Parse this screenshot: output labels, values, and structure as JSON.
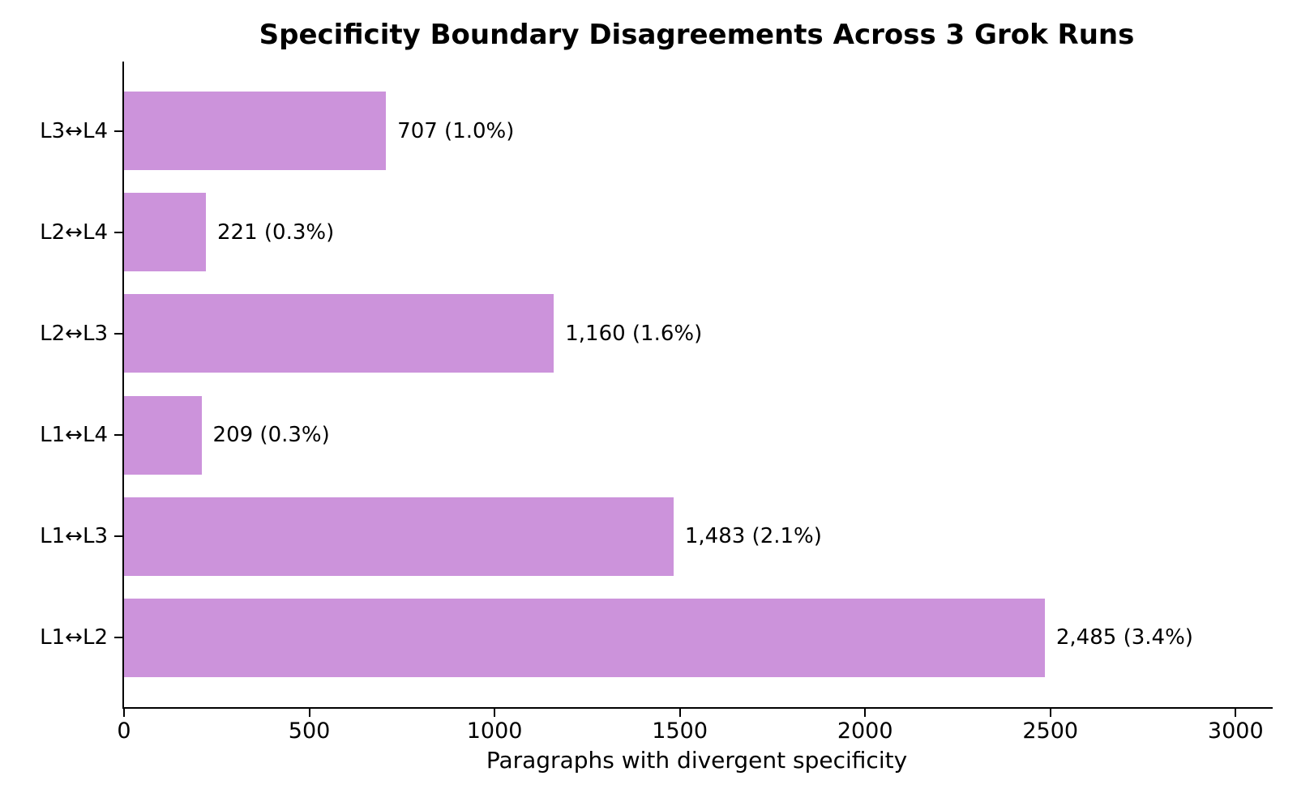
{
  "title": "Specificity Boundary Disagreements Across 3 Grok Runs",
  "xaxis": {
    "label": "Paragraphs with divergent specificity",
    "ticks": [
      0,
      500,
      1000,
      1500,
      2000,
      2500,
      3000
    ],
    "max": 3100
  },
  "colors": {
    "bar": "#cc93db",
    "axis": "#000000",
    "background": "#ffffff",
    "text": "#000000"
  },
  "chart_data": {
    "type": "bar",
    "orientation": "horizontal",
    "title": "Specificity Boundary Disagreements Across 3 Grok Runs",
    "xlabel": "Paragraphs with divergent specificity",
    "ylabel": "",
    "categories": [
      "L3↔L4",
      "L2↔L4",
      "L2↔L3",
      "L1↔L4",
      "L1↔L3",
      "L1↔L2"
    ],
    "values": [
      707,
      221,
      1160,
      209,
      1483,
      2485
    ],
    "percent_of_total": [
      1.0,
      0.3,
      1.6,
      0.3,
      2.1,
      3.4
    ],
    "value_labels": [
      "707 (1.0%)",
      "221 (0.3%)",
      "1,160 (1.6%)",
      "209 (0.3%)",
      "1,483 (2.1%)",
      "2,485 (3.4%)"
    ],
    "xlim": [
      0,
      3100
    ],
    "xticks": [
      0,
      500,
      1000,
      1500,
      2000,
      2500,
      3000
    ],
    "grid": false,
    "legend": false,
    "bar_color": "#cc93db"
  }
}
